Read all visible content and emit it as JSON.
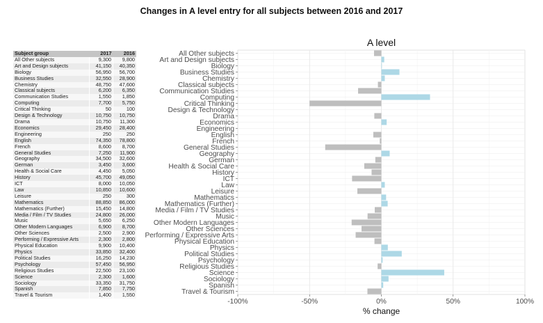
{
  "title": "Changes in A level entry for all subjects between 2016 and 2017",
  "table": {
    "headers": [
      "Subject group",
      "2017",
      "2016"
    ],
    "rows": [
      [
        "All Other subjects",
        "9,300",
        "9,800"
      ],
      [
        "Art and Design subjects",
        "41,150",
        "40,350"
      ],
      [
        "Biology",
        "56,950",
        "56,700"
      ],
      [
        "Business Studies",
        "32,550",
        "28,900"
      ],
      [
        "Chemistry",
        "48,750",
        "47,600"
      ],
      [
        "Classical subjects",
        "6,200",
        "6,350"
      ],
      [
        "Communication Studies",
        "1,550",
        "1,850"
      ],
      [
        "Computing",
        "7,700",
        "5,750"
      ],
      [
        "Critical Thinking",
        "50",
        "100"
      ],
      [
        "Design & Technology",
        "10,750",
        "10,750"
      ],
      [
        "Drama",
        "10,750",
        "11,300"
      ],
      [
        "Economics",
        "29,450",
        "28,400"
      ],
      [
        "Engineering",
        "250",
        "250"
      ],
      [
        "English",
        "74,350",
        "78,800"
      ],
      [
        "French",
        "8,600",
        "8,700"
      ],
      [
        "General Studies",
        "7,250",
        "11,900"
      ],
      [
        "Geography",
        "34,500",
        "32,600"
      ],
      [
        "German",
        "3,450",
        "3,600"
      ],
      [
        "Health & Social Care",
        "4,450",
        "5,050"
      ],
      [
        "History",
        "45,700",
        "49,050"
      ],
      [
        "ICT",
        "8,000",
        "10,050"
      ],
      [
        "Law",
        "10,850",
        "10,600"
      ],
      [
        "Leisure",
        "250",
        "300"
      ],
      [
        "Mathematics",
        "88,850",
        "86,000"
      ],
      [
        "Mathematics (Further)",
        "15,450",
        "14,800"
      ],
      [
        "Media / Film / TV Studies",
        "24,800",
        "26,000"
      ],
      [
        "Music",
        "5,650",
        "6,250"
      ],
      [
        "Other Modern Languages",
        "6,900",
        "8,700"
      ],
      [
        "Other Sciences",
        "2,500",
        "2,900"
      ],
      [
        "Performing / Expressive Arts",
        "2,300",
        "2,800"
      ],
      [
        "Physical Education",
        "9,900",
        "10,400"
      ],
      [
        "Physics",
        "33,850",
        "32,400"
      ],
      [
        "Political Studies",
        "16,250",
        "14,230"
      ],
      [
        "Psychology",
        "57,450",
        "56,950"
      ],
      [
        "Religious Studies",
        "22,500",
        "23,100"
      ],
      [
        "Science",
        "2,300",
        "1,600"
      ],
      [
        "Sociology",
        "33,350",
        "31,750"
      ],
      [
        "Spanish",
        "7,850",
        "7,750"
      ],
      [
        "Travel & Tourism",
        "1,400",
        "1,550"
      ]
    ]
  },
  "chart_data": {
    "type": "bar",
    "orientation": "horizontal",
    "title": "A level",
    "xlabel": "% change",
    "ylabel": "",
    "xlim": [
      -100,
      100
    ],
    "x_ticks": [
      -100,
      -50,
      0,
      50,
      100
    ],
    "x_tick_labels": [
      "-100%",
      "-50%",
      "0%",
      "50%",
      "100%"
    ],
    "grid": true,
    "colors": {
      "increase": "#add8e6",
      "decrease": "#bebebe"
    },
    "categories": [
      "All Other subjects",
      "Art and Design subjects",
      "Biology",
      "Business Studies",
      "Chemistry",
      "Classical subjects",
      "Communication Studies",
      "Computing",
      "Critical Thinking",
      "Design & Technology",
      "Drama",
      "Economics",
      "Engineering",
      "English",
      "French",
      "General Studies",
      "Geography",
      "German",
      "Health & Social Care",
      "History",
      "ICT",
      "Law",
      "Leisure",
      "Mathematics",
      "Mathematics (Further)",
      "Media / Film / TV Studies",
      "Music",
      "Other Modern Languages",
      "Other Sciences",
      "Performing / Expressive Arts",
      "Physical Education",
      "Physics",
      "Political Studies",
      "Psychology",
      "Religious Studies",
      "Science",
      "Sociology",
      "Spanish",
      "Travel & Tourism"
    ],
    "values": [
      -5.1,
      2.0,
      0.4,
      12.6,
      2.4,
      -2.4,
      -16.2,
      33.9,
      -50,
      0,
      -4.9,
      3.7,
      0,
      -5.6,
      -1.1,
      -39.1,
      5.8,
      -4.2,
      -11.9,
      -6.8,
      -20.4,
      2.4,
      -16.7,
      3.3,
      4.4,
      -4.6,
      -9.6,
      -20.7,
      -13.8,
      -17.9,
      -4.8,
      4.5,
      14.2,
      0.9,
      -2.6,
      43.8,
      5.0,
      1.3,
      -9.7
    ]
  }
}
